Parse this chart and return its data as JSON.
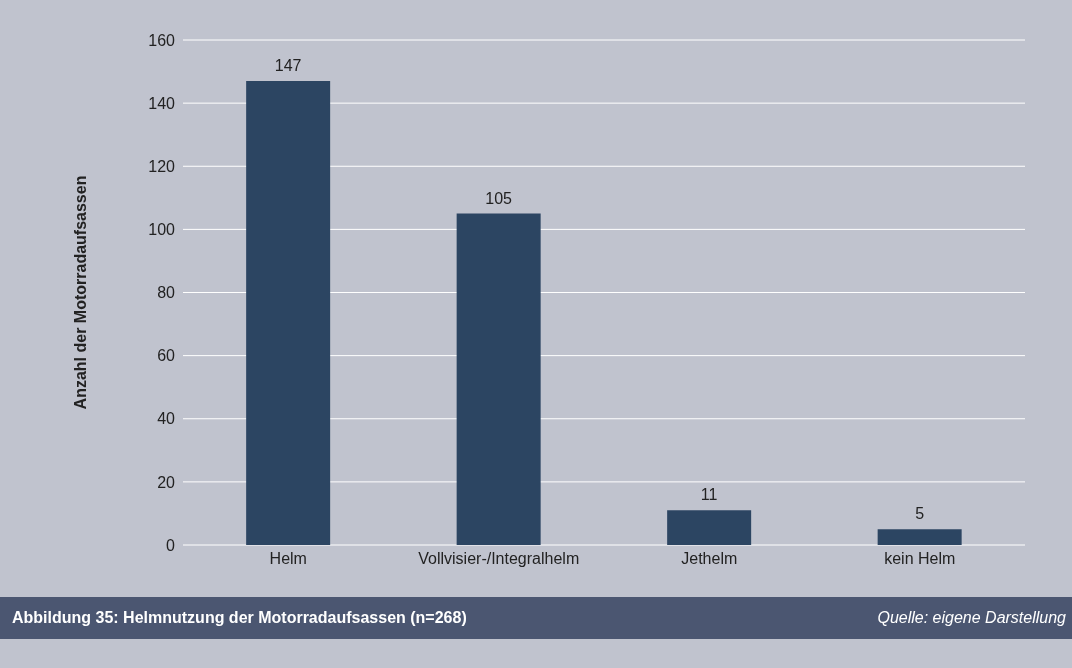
{
  "chart_data": {
    "type": "bar",
    "title": "Abbildung 35: Helmnutzung der Motorradaufsassen (n=268)",
    "ylabel": "Anzahl der Motorradaufsassen",
    "annotations": [
      "Quelle: eigene Darstellung"
    ],
    "categories": [
      "Helm",
      "Vollvisier-/Integralhelm",
      "Jethelm",
      "kein Helm"
    ],
    "values": [
      147,
      105,
      11,
      5
    ],
    "color": "#2c4562",
    "ylim": [
      0,
      160
    ],
    "yticks": [
      0,
      20,
      40,
      60,
      80,
      100,
      120,
      140,
      160
    ],
    "grid": "y",
    "data_labels": true
  }
}
